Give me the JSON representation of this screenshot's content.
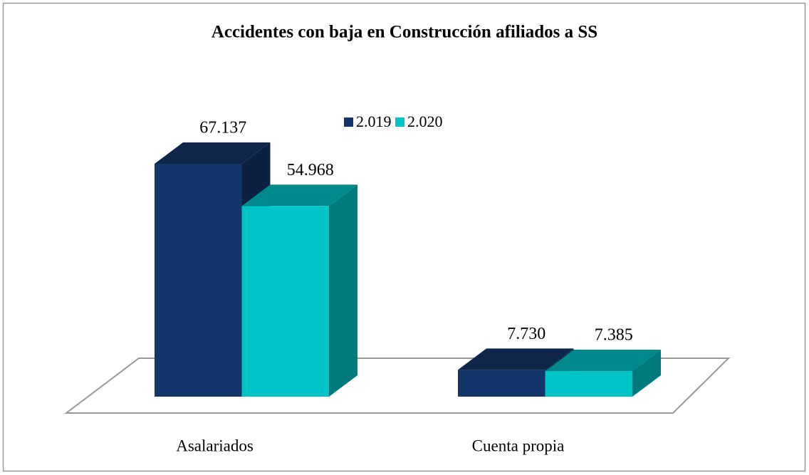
{
  "chart_data": {
    "type": "bar3d",
    "title": "Accidentes con baja en Construcción afiliados a SS",
    "categories": [
      "Asalariados",
      "Cuenta propia"
    ],
    "series": [
      {
        "name": "2.019",
        "color": "#14366a",
        "values": [
          67137,
          7730
        ],
        "value_labels": [
          "67.137",
          "7.730"
        ]
      },
      {
        "name": "2.020",
        "color": "#00c4c8",
        "values": [
          54968,
          7385
        ],
        "value_labels": [
          "54.968",
          "7.385"
        ]
      }
    ],
    "legend": "top"
  }
}
